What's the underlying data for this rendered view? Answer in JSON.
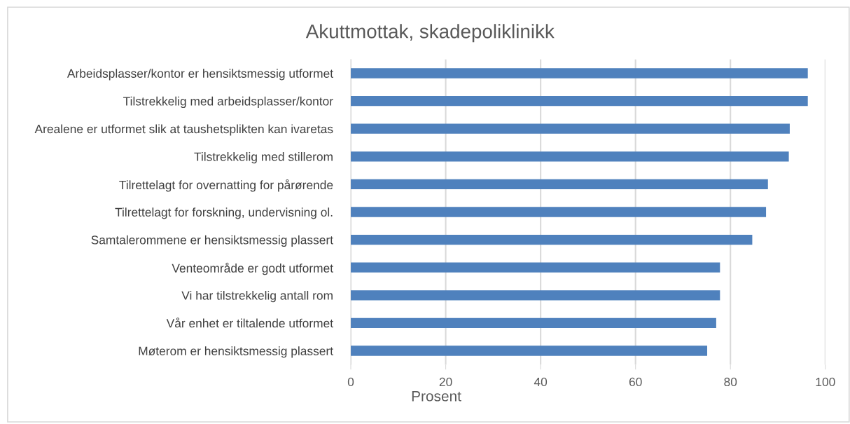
{
  "chart_data": {
    "type": "bar",
    "orientation": "horizontal",
    "title": "Akuttmottak, skadepoliklinikk",
    "xlabel": "Prosent",
    "categories": [
      "Arbeidsplasser/kontor er hensiktsmessig utformet",
      "Tilstrekkelig med arbeidsplasser/kontor",
      "Arealene er utformet slik at taushetsplikten kan ivaretas",
      "Tilstrekkelig med stillerom",
      "Tilrettelagt for overnatting for pårørende",
      "Tilrettelagt for forskning, undervisning ol.",
      "Samtalerommene er hensiktsmessig plassert",
      "Venteområde er godt utformet",
      "Vi har tilstrekkelig antall rom",
      "Vår enhet er tiltalende utformet",
      "Møterom er hensiktsmessig plassert"
    ],
    "values": [
      96.3,
      96.3,
      92.5,
      92.3,
      87.9,
      87.5,
      84.6,
      77.8,
      77.8,
      77.0,
      75.1
    ],
    "color": "#4f81bd",
    "xlim": [
      0,
      100
    ],
    "xticks": [
      0,
      20,
      40,
      60,
      80,
      100
    ],
    "grid": "x",
    "legend": false
  }
}
